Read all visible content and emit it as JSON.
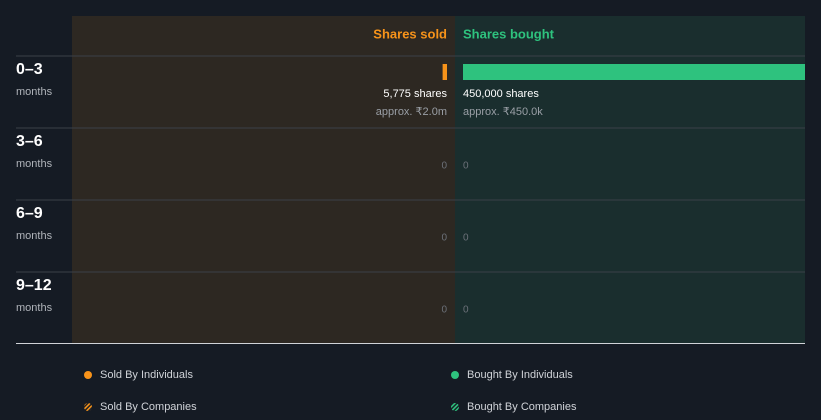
{
  "chart_data": {
    "type": "bar",
    "categories": [
      "0–3",
      "3–6",
      "6–9",
      "9–12"
    ],
    "category_sublabels": [
      "months",
      "months",
      "months",
      "months"
    ],
    "xlim": [
      0,
      450000
    ],
    "series": [
      {
        "name": "Shares sold",
        "color": "#f7931a",
        "side": "left",
        "values": [
          5775,
          0,
          0,
          0
        ],
        "value_labels": [
          "5,775 shares",
          "0",
          "0",
          "0"
        ],
        "approx_labels": [
          "approx. ₹2.0m",
          null,
          null,
          null
        ]
      },
      {
        "name": "Shares bought",
        "color": "#2ec27e",
        "side": "right",
        "values": [
          450000,
          0,
          0,
          0
        ],
        "value_labels": [
          "450,000 shares",
          "0",
          "0",
          "0"
        ],
        "approx_labels": [
          "approx. ₹450.0k",
          null,
          null,
          null
        ]
      }
    ],
    "legend": [
      {
        "label": "Sold By Individuals",
        "color": "#f7931a",
        "pattern": "solid"
      },
      {
        "label": "Bought By Individuals",
        "color": "#2ec27e",
        "pattern": "solid"
      },
      {
        "label": "Sold By Companies",
        "color": "#f7931a",
        "pattern": "hatched"
      },
      {
        "label": "Bought By Companies",
        "color": "#2ec27e",
        "pattern": "hatched"
      }
    ]
  }
}
